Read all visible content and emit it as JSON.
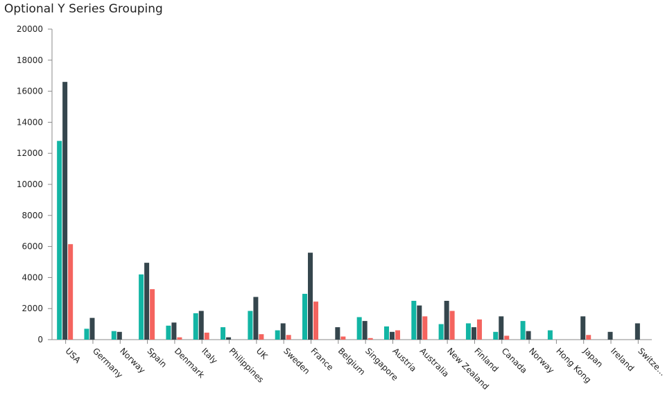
{
  "chart_data": {
    "type": "bar",
    "title": "Optional Y Series Grouping",
    "xlabel": "",
    "ylabel": "",
    "ylim": [
      0,
      20000
    ],
    "yticks": [
      0,
      2000,
      4000,
      6000,
      8000,
      10000,
      12000,
      14000,
      16000,
      18000,
      20000
    ],
    "grid": false,
    "categories": [
      "USA",
      "Germany",
      "Norway",
      "Spain",
      "Denmark",
      "Italy",
      "Philippines",
      "UK",
      "Sweden",
      "France",
      "Belgium",
      "Singapore",
      "Austria",
      "Australia",
      "New Zealand",
      "Finland",
      "Canada",
      "Norway",
      "Hong Kong",
      "Japan",
      "Ireland",
      "Switze..."
    ],
    "series": [
      {
        "color": "#12b5a4",
        "values": [
          12800,
          700,
          550,
          4200,
          900,
          1700,
          800,
          1850,
          600,
          2950,
          0,
          1450,
          850,
          2500,
          1000,
          1050,
          500,
          1200,
          600,
          0,
          0,
          0
        ]
      },
      {
        "color": "#35464d",
        "values": [
          16600,
          1400,
          500,
          4950,
          1100,
          1850,
          150,
          2750,
          1050,
          5600,
          800,
          1200,
          500,
          2200,
          2500,
          800,
          1500,
          550,
          0,
          1500,
          500,
          1050
        ]
      },
      {
        "color": "#f4645f",
        "values": [
          6150,
          0,
          0,
          3250,
          150,
          450,
          0,
          350,
          300,
          2450,
          200,
          100,
          600,
          1500,
          1850,
          1300,
          250,
          0,
          0,
          300,
          0,
          0
        ]
      }
    ]
  }
}
